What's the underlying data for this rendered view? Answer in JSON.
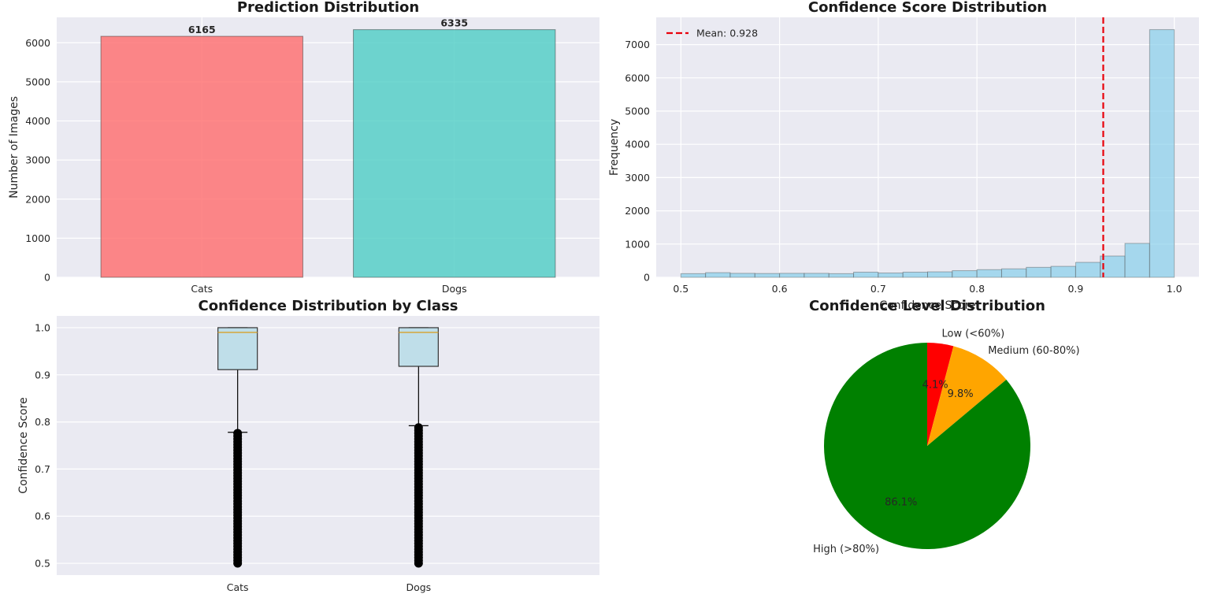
{
  "chart_data": [
    {
      "type": "bar",
      "title": "Prediction Distribution",
      "xlabel": "",
      "ylabel": "Number of Images",
      "categories": [
        "Cats",
        "Dogs"
      ],
      "values": [
        6165,
        6335
      ],
      "value_labels": [
        "6165",
        "6335"
      ],
      "colors": [
        "#ff6b6b",
        "#4ecdc4"
      ],
      "ylim": [
        0,
        6650
      ],
      "yticks": [
        0,
        1000,
        2000,
        3000,
        4000,
        5000,
        6000
      ],
      "grid": true
    },
    {
      "type": "bar",
      "title": "Confidence Score Distribution",
      "xlabel": "Confidence Score",
      "ylabel": "Frequency",
      "bin_edges": [
        0.5,
        0.525,
        0.55,
        0.575,
        0.6,
        0.625,
        0.65,
        0.675,
        0.7,
        0.725,
        0.75,
        0.775,
        0.8,
        0.825,
        0.85,
        0.875,
        0.9,
        0.925,
        0.95,
        0.975,
        1.0
      ],
      "values": [
        110,
        140,
        120,
        115,
        120,
        120,
        110,
        155,
        130,
        155,
        165,
        200,
        230,
        255,
        300,
        330,
        450,
        640,
        1020,
        7450
      ],
      "color": "#87ceeb",
      "mean": 0.928,
      "mean_label": "Mean: 0.928",
      "mean_color": "#e8000b",
      "xlim": [
        0.475,
        1.025
      ],
      "ylim": [
        0,
        7820
      ],
      "xticks": [
        0.5,
        0.6,
        0.7,
        0.8,
        0.9,
        1.0
      ],
      "yticks": [
        0,
        1000,
        2000,
        3000,
        4000,
        5000,
        6000,
        7000
      ],
      "legend": "top-left",
      "grid": true
    },
    {
      "type": "box",
      "title": "Confidence Distribution by Class",
      "xlabel": "",
      "ylabel": "Confidence Score",
      "categories": [
        "Cats",
        "Dogs"
      ],
      "boxes": [
        {
          "whisker_low": 0.778,
          "q1": 0.911,
          "median": 0.99,
          "q3": 1.0,
          "whisker_high": 1.0,
          "outliers_min": 0.5,
          "outliers_max": 0.778
        },
        {
          "whisker_low": 0.792,
          "q1": 0.918,
          "median": 0.99,
          "q3": 1.0,
          "whisker_high": 1.0,
          "outliers_min": 0.5,
          "outliers_max": 0.792
        }
      ],
      "box_color": "#add8e6",
      "ylim": [
        0.475,
        1.025
      ],
      "yticks": [
        0.5,
        0.6,
        0.7,
        0.8,
        0.9,
        1.0
      ],
      "grid": true
    },
    {
      "type": "pie",
      "title": "Confidence Level Distribution",
      "slices": [
        {
          "label": "Low (<60%)",
          "value": 4.1,
          "pct_label": "4.1%",
          "color": "#ff0000"
        },
        {
          "label": "Medium (60-80%)",
          "value": 9.8,
          "pct_label": "9.8%",
          "color": "#ffa500"
        },
        {
          "label": "High (>80%)",
          "value": 86.1,
          "pct_label": "86.1%",
          "color": "#008000"
        }
      ]
    }
  ]
}
